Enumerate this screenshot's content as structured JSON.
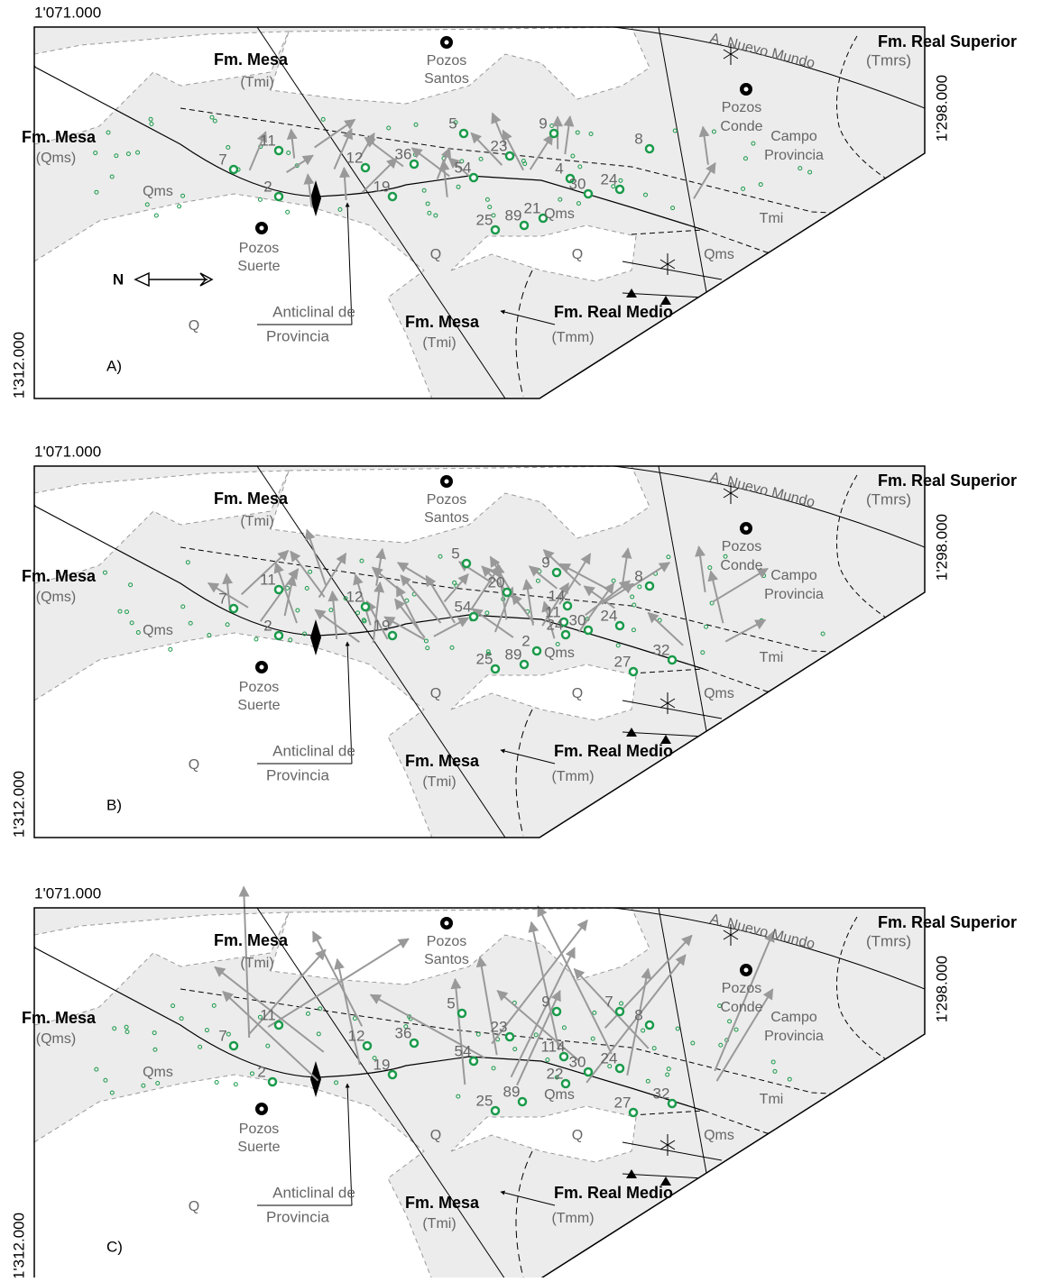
{
  "panels": [
    {
      "letter": "A)",
      "top_coord": "1'071.000",
      "right_coord": "1'298.000",
      "left_coord": "1'312.000",
      "north": "N",
      "labels": [
        "Fm. Real Superior",
        "(Tmrs)",
        "A. Nuevo Mundo",
        "Fm. Mesa",
        "(Tmi)",
        "Pozos",
        "Santos",
        "Pozos",
        "Conde",
        "Campo",
        "Provincia",
        "Fm. Mesa",
        "(Qms)",
        "Qms",
        "Qms",
        "Tmi",
        "Pozos",
        "Suerte",
        "Q",
        "Q",
        "Qms",
        "Anticlinal de",
        "Provincia",
        "Fm. Mesa",
        "(Tmi)",
        "Fm. Real Medio",
        "(Tmm)",
        "Q"
      ],
      "wells": [
        "11",
        "7",
        "2",
        "12",
        "36",
        "19",
        "5",
        "23",
        "54",
        "25",
        "89",
        "21",
        "9",
        "4",
        "30",
        "24",
        "8"
      ]
    },
    {
      "letter": "B)",
      "top_coord": "1'071.000",
      "right_coord": "1'298.000",
      "left_coord": "1'312.000",
      "labels": [
        "Fm. Real Superior",
        "(Tmrs)",
        "A. Nuevo Mundo",
        "Fm. Mesa",
        "(Tmi)",
        "Pozos",
        "Santos",
        "Pozos",
        "Conde",
        "Campo",
        "Provincia",
        "Fm. Mesa",
        "(Qms)",
        "Qms",
        "Qms",
        "Tmi",
        "Pozos",
        "Suerte",
        "Q",
        "Q",
        "Qms",
        "Anticlinal de",
        "Provincia",
        "Fm. Mesa",
        "(Tmi)",
        "Fm. Real Medio",
        "(Tmm)",
        "Q"
      ],
      "wells": [
        "11",
        "7",
        "2",
        "12",
        "19",
        "5",
        "20",
        "54",
        "9",
        "14",
        "11",
        "24",
        "30",
        "24",
        "8",
        "25",
        "89",
        "2",
        "27",
        "32"
      ]
    },
    {
      "letter": "C)",
      "top_coord": "1'071.000",
      "right_coord": "1'298.000",
      "left_coord": "1'312.000",
      "labels": [
        "Fm. Real Superior",
        "(Tmrs)",
        "A. Nuevo Mundo",
        "Fm. Mesa",
        "(Tmi)",
        "Pozos",
        "Santos",
        "Pozos",
        "Conde",
        "Campo",
        "Provincia",
        "Fm. Mesa",
        "(Qms)",
        "Qms",
        "Qms",
        "Tmi",
        "Pozos",
        "Suerte",
        "Q",
        "Q",
        "Qms",
        "Anticlinal de",
        "Provincia",
        "Fm. Mesa",
        "(Tmi)",
        "Fm. Real Medio",
        "(Tmm)",
        "Q"
      ],
      "wells": [
        "11",
        "7",
        "2",
        "12",
        "36",
        "19",
        "5",
        "23",
        "54",
        "9",
        "114",
        "30",
        "22",
        "24",
        "8",
        "25",
        "89",
        "27",
        "32",
        "7"
      ]
    }
  ]
}
